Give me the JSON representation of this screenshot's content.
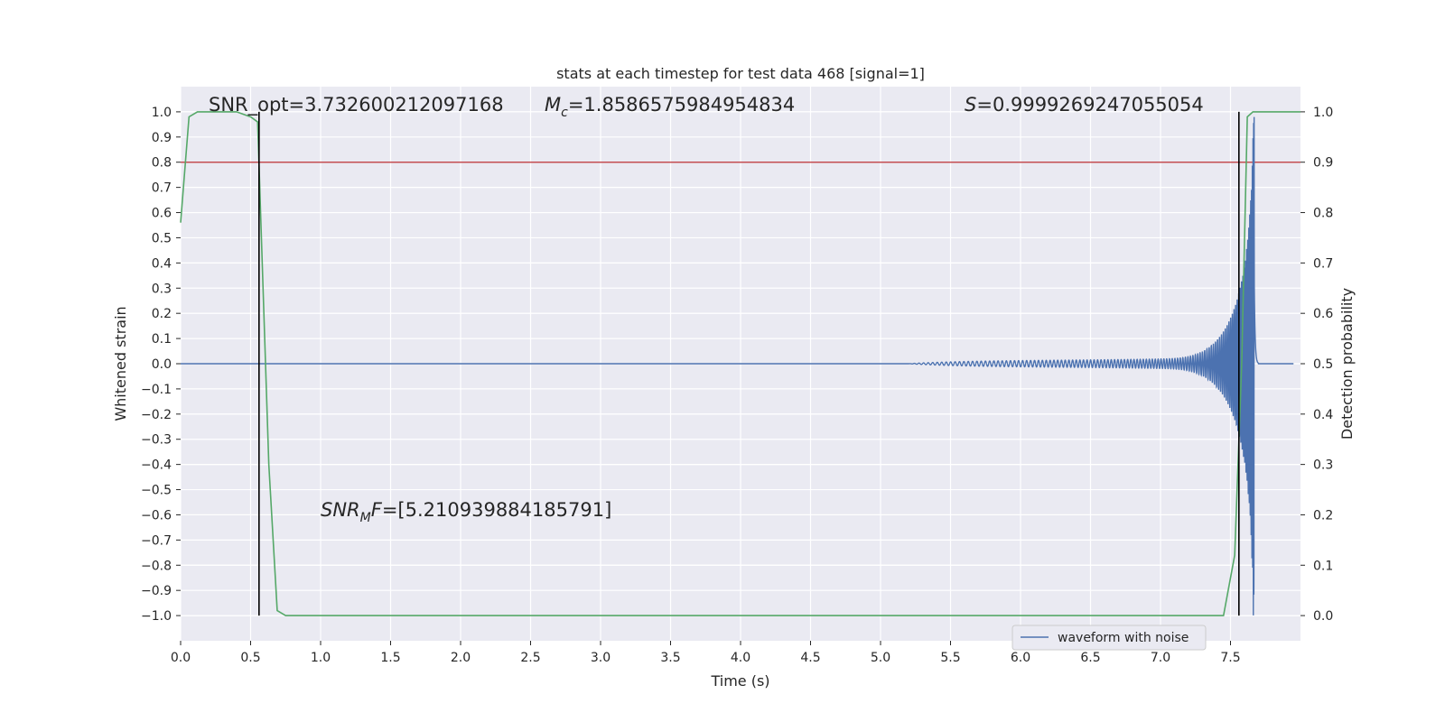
{
  "chart_data": {
    "type": "line",
    "title": "stats at each timestep for test data 468 [signal=1]",
    "xlabel": "Time (s)",
    "ylabel": "Whitened strain",
    "ylabel_right": "Detection probability",
    "xlim": [
      0.0,
      8.0
    ],
    "ylim": [
      -1.1,
      1.1
    ],
    "ylim_right": [
      -0.05,
      1.05
    ],
    "xticks": [
      "0.0",
      "0.5",
      "1.0",
      "1.5",
      "2.0",
      "2.5",
      "3.0",
      "3.5",
      "4.0",
      "4.5",
      "5.0",
      "5.5",
      "6.0",
      "6.5",
      "7.0",
      "7.5"
    ],
    "yticks": [
      "1.0",
      "0.9",
      "0.8",
      "0.7",
      "0.6",
      "0.5",
      "0.4",
      "0.3",
      "0.2",
      "0.1",
      "0.0",
      "−0.1",
      "−0.2",
      "−0.3",
      "−0.4",
      "−0.5",
      "−0.6",
      "−0.7",
      "−0.8",
      "−0.9",
      "−1.0"
    ],
    "yticks_right": [
      "1.0",
      "0.9",
      "0.8",
      "0.7",
      "0.6",
      "0.5",
      "0.4",
      "0.3",
      "0.2",
      "0.1",
      "0.0"
    ],
    "grid": true,
    "legend_position": "bottom-right",
    "annotations": {
      "snr_opt": "SNR_opt=3.732600212097168",
      "mc_sym": "M",
      "mc_sub": "c",
      "mc_value": "=1.8586575984954834",
      "s_sym": "S",
      "s_value": "=0.9999269247055054",
      "snrmf_sym": "SNR",
      "snrmf_sub": "M",
      "snrmf_sym2": "F",
      "snrmf_value": "=[5.210939884185791]"
    },
    "series": [
      {
        "name": "waveform with noise",
        "axis": "left",
        "color": "#4c72b0",
        "kind": "chirp",
        "start": 5.2,
        "merger": 7.67,
        "end": 7.7,
        "peak_amplitude": 1.0
      },
      {
        "axis": "right",
        "color": "#55a868",
        "x": [
          0.0,
          0.06,
          0.12,
          0.2,
          0.3,
          0.4,
          0.5,
          0.55,
          0.63,
          0.69,
          0.75,
          0.8,
          1.0,
          2.0,
          3.0,
          4.0,
          5.0,
          6.0,
          7.0,
          7.45,
          7.53,
          7.58,
          7.62,
          7.66,
          7.7,
          8.0
        ],
        "y": [
          0.78,
          0.99,
          1.0,
          1.0,
          1.0,
          1.0,
          0.99,
          0.98,
          0.3,
          0.01,
          0.0,
          0.0,
          0.0,
          0.0,
          0.0,
          0.0,
          0.0,
          0.0,
          0.0,
          0.0,
          0.12,
          0.5,
          0.99,
          1.0,
          1.0,
          1.0
        ]
      }
    ],
    "threshold": {
      "axis": "right",
      "y": 0.9,
      "color": "#c44e52"
    },
    "vlines": [
      {
        "x": 0.56,
        "ymin": 0.0,
        "ymax": 1.0,
        "color": "#000000"
      },
      {
        "x": 7.56,
        "ymin": 0.0,
        "ymax": 1.0,
        "color": "#000000"
      }
    ]
  }
}
